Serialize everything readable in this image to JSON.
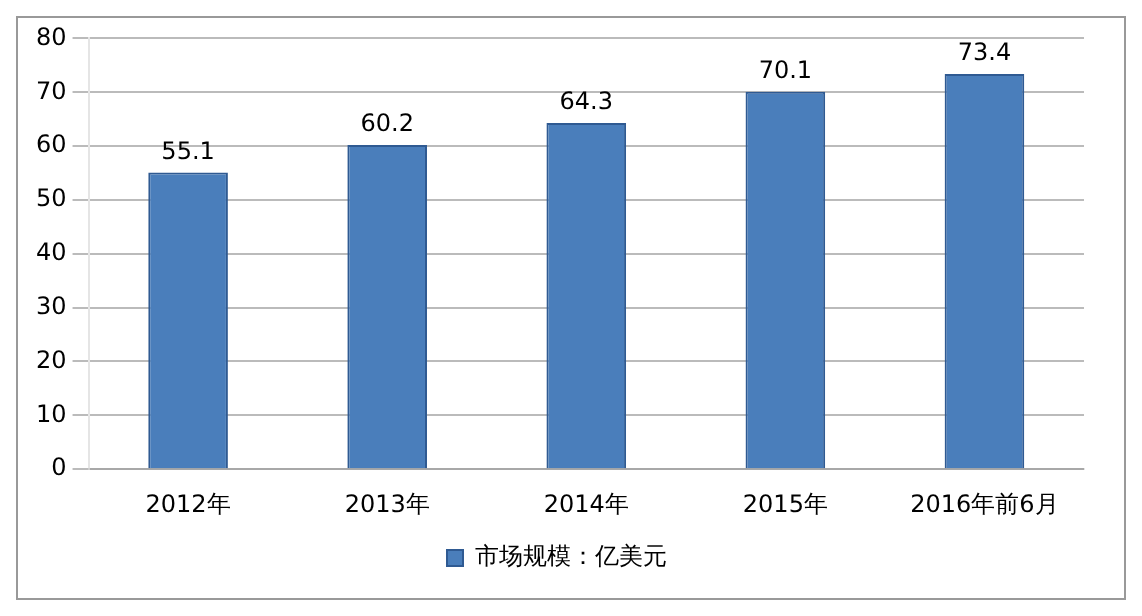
{
  "chart_data": {
    "type": "bar",
    "categories": [
      "2012年",
      "2013年",
      "2014年",
      "2015年",
      "2016年前6月"
    ],
    "series": [
      {
        "name": "市场规模：亿美元",
        "color": "#4a7ebb",
        "values": [
          55.1,
          60.2,
          64.3,
          70.1,
          73.4
        ]
      }
    ],
    "ylim": [
      0,
      80
    ],
    "yticks": [
      0,
      10,
      20,
      30,
      40,
      50,
      60,
      70,
      80
    ],
    "grid": "y",
    "legend": "bottom",
    "data_labels": true
  }
}
